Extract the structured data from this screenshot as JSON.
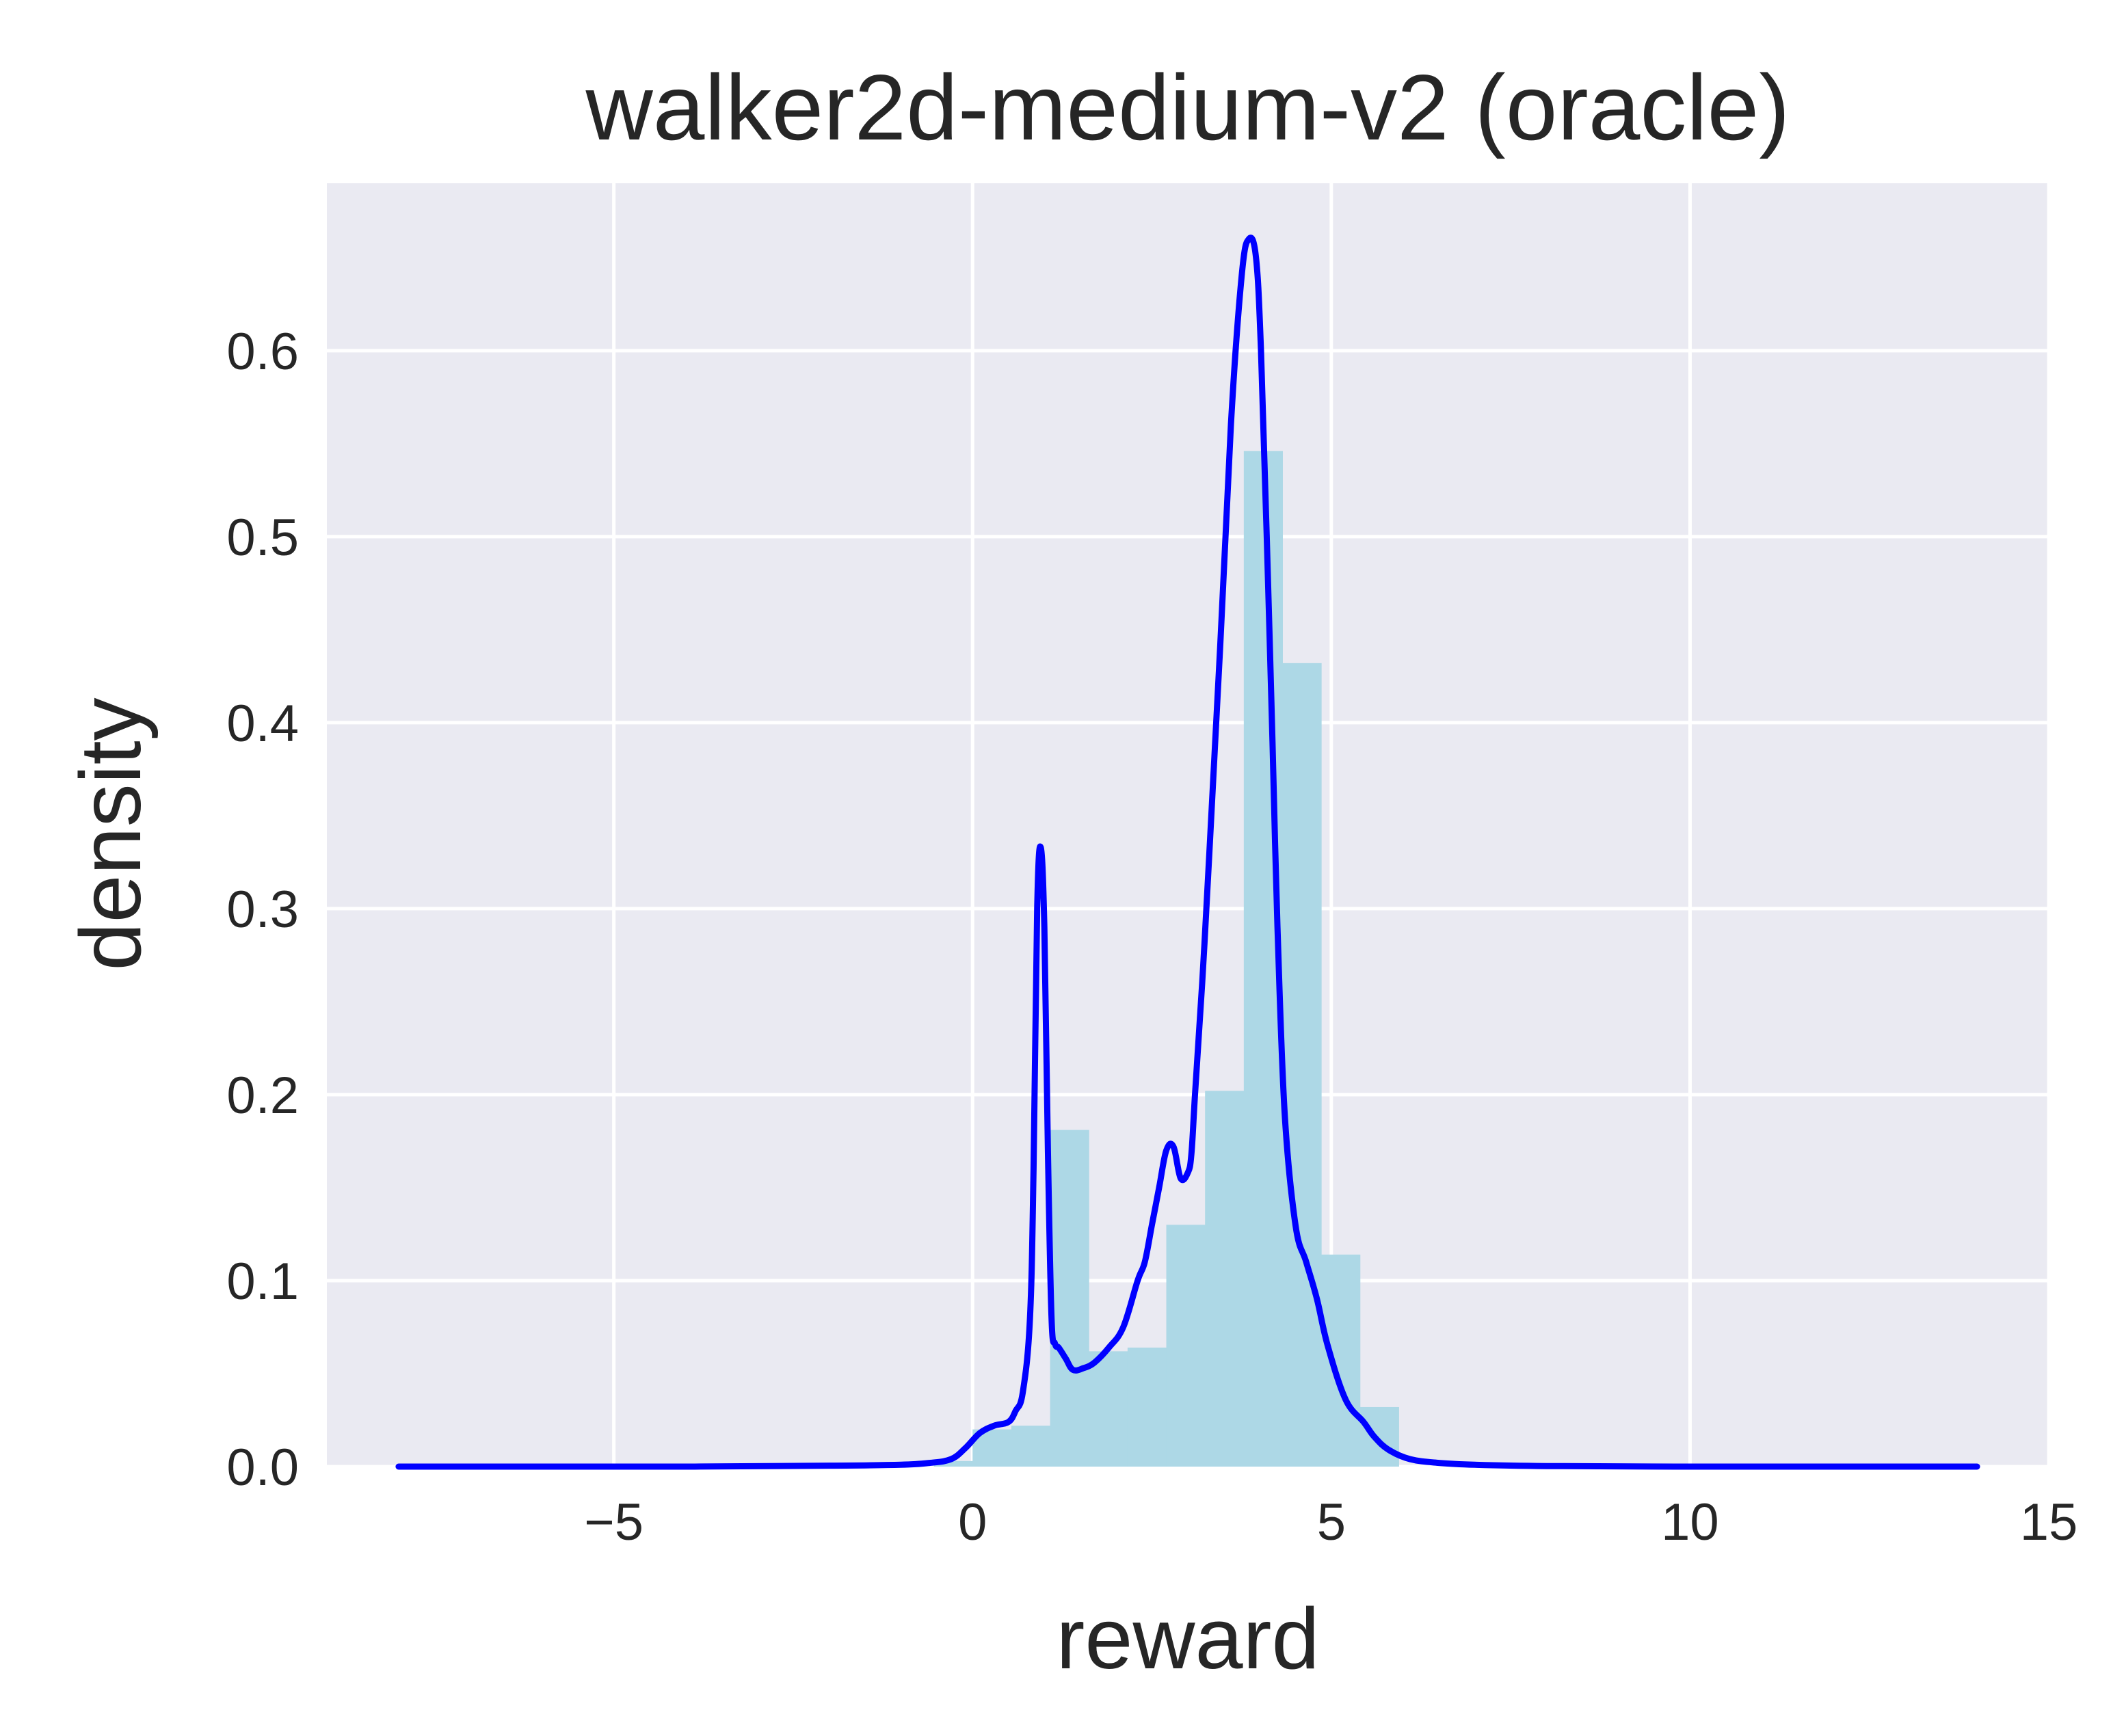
{
  "chart_data": {
    "type": "area",
    "title": "walker2d-medium-v2 (oracle)",
    "xlabel": "reward",
    "ylabel": "density",
    "xlim": [
      -9,
      15
    ],
    "ylim": [
      0,
      0.69
    ],
    "grid": true,
    "xticks": [
      -5,
      0,
      5,
      10,
      15
    ],
    "xtick_labels": [
      "−5",
      "0",
      "5",
      "10",
      "15"
    ],
    "yticks": [
      0.0,
      0.1,
      0.2,
      0.3,
      0.4,
      0.5,
      0.6
    ],
    "ytick_labels": [
      "0.0",
      "0.1",
      "0.2",
      "0.3",
      "0.4",
      "0.5",
      "0.6"
    ],
    "colors": {
      "background": "#EAEAF2",
      "grid": "#FFFFFF",
      "histogram": "#ADD8E6",
      "kde": "#0000FF",
      "text": "#262626"
    },
    "histogram": {
      "bin_edges": [
        -0.54,
        0.0,
        0.54,
        1.08,
        1.62,
        2.16,
        2.7,
        3.24,
        3.78,
        4.32,
        4.86,
        5.4,
        5.94
      ],
      "values": [
        0.003,
        0.02,
        0.022,
        0.181,
        0.062,
        0.064,
        0.13,
        0.202,
        0.546,
        0.432,
        0.114,
        0.032
      ]
    },
    "kde": {
      "x": [
        -8,
        -6,
        -4,
        -2,
        -1,
        -0.6,
        -0.3,
        -0.1,
        0.1,
        0.3,
        0.5,
        0.6,
        0.7,
        0.8,
        0.85,
        0.9,
        0.95,
        1.0,
        1.05,
        1.1,
        1.15,
        1.2,
        1.3,
        1.4,
        1.55,
        1.7,
        1.9,
        2.1,
        2.3,
        2.4,
        2.5,
        2.6,
        2.7,
        2.8,
        2.9,
        3.0,
        3.05,
        3.1,
        3.2,
        3.3,
        3.45,
        3.6,
        3.75,
        3.85,
        3.95,
        4.02,
        4.1,
        4.18,
        4.25,
        4.35,
        4.5,
        4.65,
        4.8,
        4.95,
        5.2,
        5.45,
        5.6,
        5.8,
        6.1,
        6.5,
        7,
        8,
        10,
        12,
        14
      ],
      "y": [
        0.0,
        0.0,
        0.0,
        0.0005,
        0.001,
        0.002,
        0.004,
        0.01,
        0.018,
        0.022,
        0.024,
        0.03,
        0.04,
        0.08,
        0.16,
        0.3,
        0.333,
        0.29,
        0.17,
        0.08,
        0.066,
        0.064,
        0.058,
        0.052,
        0.053,
        0.056,
        0.064,
        0.075,
        0.1,
        0.11,
        0.13,
        0.15,
        0.17,
        0.172,
        0.155,
        0.158,
        0.168,
        0.2,
        0.26,
        0.33,
        0.44,
        0.56,
        0.64,
        0.66,
        0.65,
        0.6,
        0.5,
        0.39,
        0.29,
        0.19,
        0.13,
        0.11,
        0.09,
        0.065,
        0.036,
        0.024,
        0.016,
        0.009,
        0.004,
        0.002,
        0.001,
        0.0003,
        0.0,
        0.0,
        0.0
      ]
    }
  }
}
